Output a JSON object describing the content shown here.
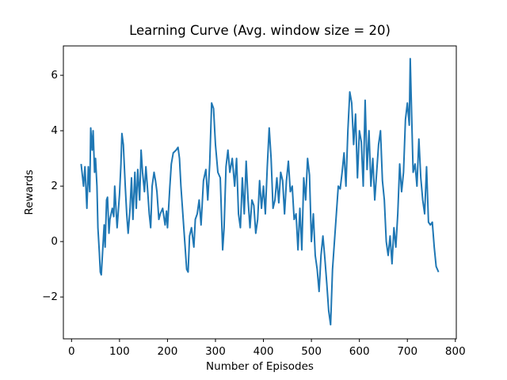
{
  "chart_data": {
    "type": "line",
    "title": "Learning Curve (Avg. window size = 20)",
    "x_label": "Number of Episodes",
    "y_label": "Rewards",
    "color": "#1f77b4",
    "x": [
      20,
      25,
      28,
      32,
      35,
      38,
      40,
      43,
      45,
      48,
      50,
      53,
      55,
      58,
      60,
      62,
      65,
      68,
      70,
      73,
      75,
      78,
      80,
      85,
      88,
      90,
      95,
      100,
      103,
      105,
      108,
      112,
      115,
      118,
      122,
      125,
      128,
      132,
      135,
      138,
      142,
      145,
      148,
      152,
      155,
      158,
      162,
      165,
      168,
      172,
      175,
      178,
      182,
      185,
      190,
      195,
      198,
      200,
      205,
      208,
      212,
      218,
      222,
      225,
      228,
      232,
      236,
      240,
      243,
      246,
      250,
      255,
      258,
      262,
      266,
      270,
      275,
      280,
      284,
      288,
      292,
      296,
      300,
      305,
      310,
      315,
      318,
      322,
      326,
      330,
      335,
      340,
      344,
      348,
      352,
      356,
      360,
      364,
      368,
      372,
      376,
      380,
      384,
      388,
      392,
      396,
      400,
      404,
      408,
      412,
      416,
      420,
      424,
      428,
      432,
      436,
      440,
      444,
      448,
      452,
      456,
      460,
      464,
      468,
      472,
      476,
      480,
      484,
      488,
      492,
      496,
      500,
      504,
      508,
      512,
      516,
      520,
      524,
      528,
      532,
      536,
      540,
      544,
      548,
      552,
      556,
      560,
      564,
      568,
      572,
      576,
      580,
      584,
      588,
      592,
      596,
      600,
      604,
      608,
      612,
      616,
      620,
      624,
      628,
      632,
      636,
      640,
      644,
      648,
      652,
      656,
      660,
      664,
      668,
      672,
      676,
      680,
      684,
      688,
      692,
      696,
      700,
      704,
      706,
      708,
      712,
      716,
      720,
      724,
      728,
      732,
      736,
      740,
      744,
      748,
      752,
      756,
      760,
      765
    ],
    "values": [
      2.8,
      2.0,
      2.7,
      1.2,
      2.7,
      1.8,
      4.1,
      3.3,
      4.0,
      2.5,
      3.0,
      2.0,
      0.5,
      -0.4,
      -1.1,
      -1.2,
      -0.3,
      0.6,
      -0.2,
      1.5,
      1.6,
      0.3,
      0.8,
      1.2,
      0.9,
      2.0,
      0.5,
      1.7,
      2.8,
      3.9,
      3.5,
      2.0,
      1.0,
      0.3,
      1.2,
      2.3,
      0.8,
      2.5,
      1.2,
      2.6,
      1.5,
      3.3,
      2.5,
      1.8,
      2.7,
      2.0,
      1.0,
      0.5,
      2.0,
      2.5,
      2.2,
      1.8,
      0.8,
      1.0,
      1.2,
      0.6,
      1.1,
      0.5,
      2.0,
      2.8,
      3.2,
      3.3,
      3.4,
      3.0,
      2.0,
      1.0,
      0.0,
      -1.0,
      -1.1,
      0.2,
      0.5,
      -0.2,
      0.8,
      1.0,
      1.5,
      0.6,
      2.2,
      2.6,
      1.5,
      2.8,
      5.0,
      4.8,
      3.5,
      2.5,
      2.3,
      -0.3,
      0.5,
      2.7,
      3.3,
      2.5,
      3.0,
      2.0,
      3.0,
      1.0,
      0.5,
      2.3,
      1.0,
      2.9,
      1.5,
      0.5,
      1.5,
      1.3,
      0.3,
      0.8,
      2.2,
      1.2,
      2.0,
      1.0,
      2.7,
      4.1,
      3.0,
      1.2,
      1.5,
      2.3,
      1.4,
      2.5,
      2.2,
      1.0,
      2.2,
      2.9,
      1.8,
      2.0,
      0.8,
      1.0,
      -0.3,
      1.2,
      -0.3,
      2.3,
      1.5,
      3.0,
      2.4,
      0.0,
      1.0,
      -0.5,
      -1.0,
      -1.8,
      -0.5,
      0.2,
      -0.6,
      -1.5,
      -2.5,
      -3.0,
      -1.0,
      0.0,
      1.0,
      2.0,
      1.9,
      2.5,
      3.2,
      2.0,
      4.0,
      5.4,
      5.0,
      3.5,
      4.6,
      2.3,
      4.0,
      3.6,
      2.0,
      5.1,
      2.6,
      4.0,
      2.0,
      3.0,
      1.5,
      2.5,
      3.5,
      4.0,
      2.2,
      1.5,
      0.0,
      -0.5,
      0.2,
      -0.8,
      0.5,
      -0.2,
      1.0,
      2.8,
      1.8,
      2.5,
      4.4,
      5.0,
      4.2,
      6.6,
      5.2,
      2.5,
      2.8,
      2.0,
      3.7,
      2.3,
      1.5,
      1.0,
      2.7,
      0.7,
      0.6,
      0.7,
      -0.2,
      -0.9,
      -1.1
    ],
    "xlim": [
      -17,
      802
    ],
    "ylim": [
      -3.51,
      7.06
    ],
    "xticks": [
      0,
      100,
      200,
      300,
      400,
      500,
      600,
      700,
      800
    ],
    "yticks": [
      {
        "value": -2,
        "label": "−2"
      },
      0,
      2,
      4,
      6
    ]
  }
}
